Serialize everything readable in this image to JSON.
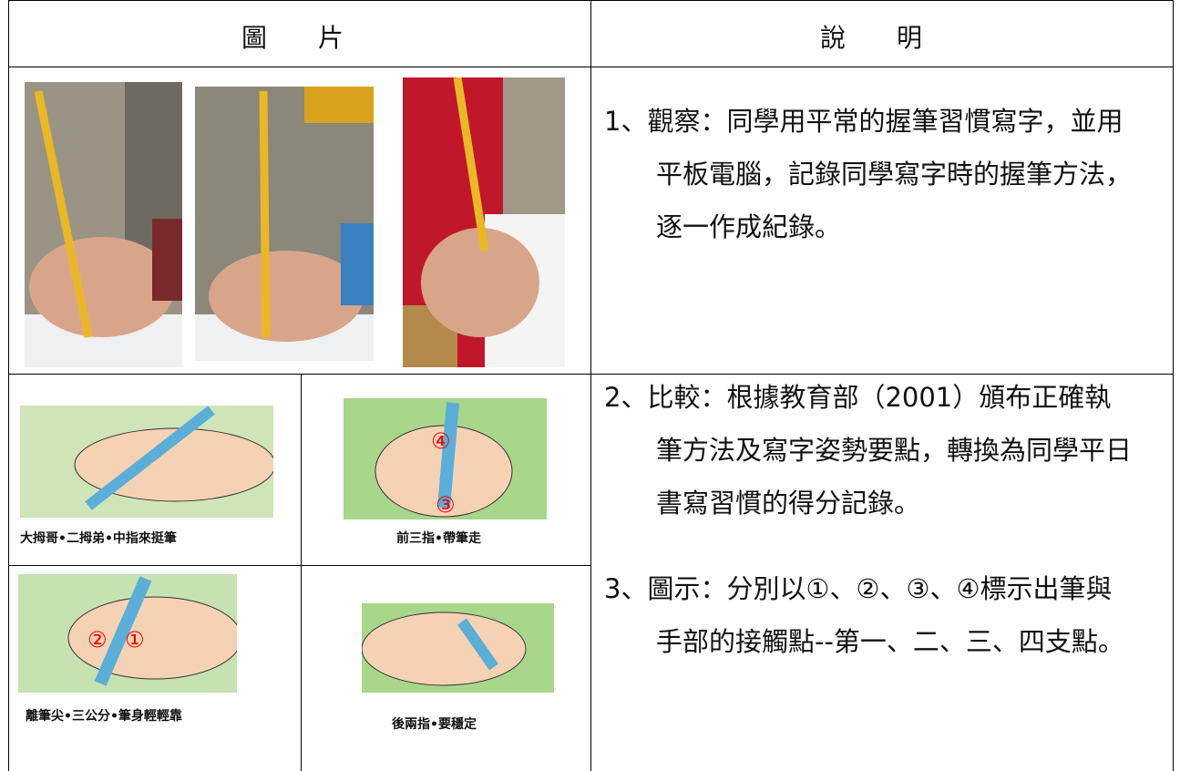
{
  "header": {
    "left": "圖　　片",
    "right": "說　　明"
  },
  "notes": [
    {
      "lines": [
        "1、觀察：同學用平常的握筆習慣寫字，並用",
        "平板電腦，記錄同學寫字時的握筆方法，",
        "逐一作成紀錄。"
      ]
    },
    {
      "lines": [
        "2、比較：根據教育部（2001）頒布正確執",
        "筆方法及寫字姿勢要點，轉換為同學平日",
        "書寫習慣的得分記錄。"
      ]
    },
    {
      "lines": [
        "3、圖示：分別以①、②、③、④標示出筆與",
        "手部的接觸點--第一、二、三、四支點。"
      ]
    }
  ],
  "illustrations": [
    {
      "caption": "大拇哥•二拇弟•中指來挺筆"
    },
    {
      "caption": "前三指•帶筆走",
      "markers": [
        "④",
        "③"
      ]
    },
    {
      "caption": "離筆尖•三公分•筆身輕輕靠",
      "markers": [
        "②",
        "①"
      ]
    },
    {
      "caption": "後兩指•要穩定"
    }
  ]
}
